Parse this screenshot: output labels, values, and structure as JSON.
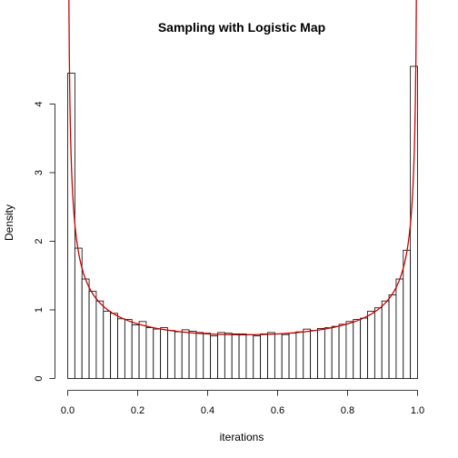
{
  "chart_data": {
    "type": "bar",
    "title": "Sampling with Logistic Map",
    "xlabel": "iterations",
    "ylabel": "Density",
    "xlim": [
      0.0,
      1.0
    ],
    "ylim": [
      0,
      4.6
    ],
    "x_ticks": [
      0.0,
      0.2,
      0.4,
      0.6,
      0.8,
      1.0
    ],
    "x_tick_labels": [
      "0.0",
      "0.2",
      "0.4",
      "0.6",
      "0.8",
      "1.0"
    ],
    "y_ticks": [
      0,
      1,
      2,
      3,
      4
    ],
    "y_tick_labels": [
      "0",
      "1",
      "2",
      "3",
      "4"
    ],
    "bin_width": 0.02,
    "bins_start": 0.0,
    "values": [
      4.45,
      1.9,
      1.45,
      1.27,
      1.13,
      0.98,
      0.95,
      0.87,
      0.86,
      0.78,
      0.83,
      0.74,
      0.72,
      0.74,
      0.7,
      0.68,
      0.71,
      0.69,
      0.67,
      0.66,
      0.62,
      0.67,
      0.66,
      0.65,
      0.65,
      0.64,
      0.62,
      0.65,
      0.67,
      0.65,
      0.64,
      0.66,
      0.68,
      0.72,
      0.7,
      0.73,
      0.74,
      0.76,
      0.79,
      0.83,
      0.86,
      0.88,
      0.98,
      1.03,
      1.13,
      1.22,
      1.45,
      1.87,
      4.55
    ],
    "density_curve": {
      "color": "#cc0000",
      "function": "1/(pi*sqrt(x*(1-x)))"
    },
    "bar_fill": "#ffffff",
    "bar_stroke": "#000000"
  }
}
